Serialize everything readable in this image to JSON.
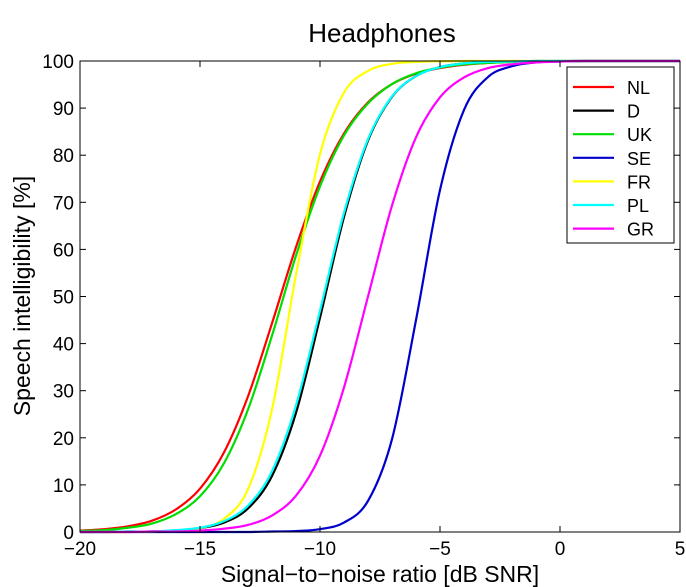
{
  "chart_data": {
    "type": "line",
    "title": "Headphones",
    "xlabel": "Signal−to−noise ratio [dB SNR]",
    "ylabel": "Speech intelligibility [%]",
    "xlim": [
      -20,
      5
    ],
    "ylim": [
      0,
      100
    ],
    "xticks": [
      -20,
      -15,
      -10,
      -5,
      0,
      5
    ],
    "xtick_labels": [
      "−20",
      "−15",
      "−10",
      "−5",
      "0",
      "5"
    ],
    "yticks": [
      0,
      10,
      20,
      30,
      40,
      50,
      60,
      70,
      80,
      90,
      100
    ],
    "ytick_labels": [
      "0",
      "10",
      "20",
      "30",
      "40",
      "50",
      "60",
      "70",
      "80",
      "90",
      "100"
    ],
    "grid": false,
    "legend_position": "top-right",
    "x": [
      -20,
      -19,
      -18,
      -17,
      -16,
      -15,
      -14,
      -13,
      -12,
      -11,
      -10,
      -9,
      -8,
      -7,
      -6,
      -5,
      -4,
      -3,
      -2,
      -1,
      0,
      1,
      2,
      3,
      4,
      5
    ],
    "series": [
      {
        "name": "NL",
        "color": "#ff0000",
        "values": [
          0.3,
          0.6,
          1.2,
          2.4,
          4.8,
          9.2,
          16.9,
          28.8,
          44.3,
          60.5,
          74.4,
          84.6,
          91.2,
          95.1,
          97.3,
          98.5,
          99.2,
          99.6,
          99.8,
          99.9,
          99.95,
          100,
          100,
          100,
          100,
          100
        ]
      },
      {
        "name": "D",
        "color": "#000000",
        "values": [
          0.0,
          0.0,
          0.1,
          0.1,
          0.3,
          0.8,
          2.0,
          5.0,
          11.9,
          25.3,
          45.5,
          66.9,
          83.1,
          92.4,
          96.8,
          98.7,
          99.5,
          99.8,
          99.9,
          100,
          100,
          100,
          100,
          100,
          100,
          100
        ]
      },
      {
        "name": "UK",
        "color": "#00dd00",
        "values": [
          0.2,
          0.4,
          0.9,
          1.8,
          3.8,
          7.6,
          14.6,
          26.0,
          41.7,
          58.7,
          73.4,
          84.2,
          91.0,
          95.1,
          97.4,
          98.6,
          99.3,
          99.6,
          99.8,
          99.9,
          99.95,
          100,
          100,
          100,
          100,
          100
        ]
      },
      {
        "name": "SE",
        "color": "#0000cc",
        "values": [
          0.0,
          0.0,
          0.0,
          0.0,
          0.0,
          0.0,
          0.0,
          0.0,
          0.1,
          0.2,
          0.6,
          2.0,
          6.6,
          19.7,
          45.0,
          72.6,
          89.6,
          96.6,
          98.9,
          99.7,
          99.9,
          100,
          100,
          100,
          100,
          100
        ]
      },
      {
        "name": "FR",
        "color": "#ffff00",
        "values": [
          0.0,
          0.0,
          0.0,
          0.1,
          0.2,
          0.8,
          2.8,
          9.1,
          26.0,
          54.6,
          80.2,
          93.3,
          97.9,
          99.4,
          99.8,
          99.95,
          100,
          100,
          100,
          100,
          100,
          100,
          100,
          100,
          100,
          100
        ]
      },
      {
        "name": "PL",
        "color": "#00ffff",
        "values": [
          0.0,
          0.0,
          0.1,
          0.1,
          0.4,
          0.9,
          2.3,
          5.6,
          12.9,
          26.9,
          47.0,
          67.8,
          83.4,
          92.5,
          96.8,
          98.7,
          99.5,
          99.8,
          99.9,
          100,
          100,
          100,
          100,
          100,
          100,
          100
        ]
      },
      {
        "name": "GR",
        "color": "#ff00ff",
        "values": [
          0.0,
          0.0,
          0.0,
          0.1,
          0.1,
          0.3,
          0.7,
          1.5,
          3.5,
          7.7,
          16.2,
          30.7,
          50.0,
          69.3,
          83.8,
          92.3,
          96.5,
          98.5,
          99.3,
          99.7,
          99.9,
          100,
          100,
          100,
          100,
          100
        ]
      }
    ]
  }
}
